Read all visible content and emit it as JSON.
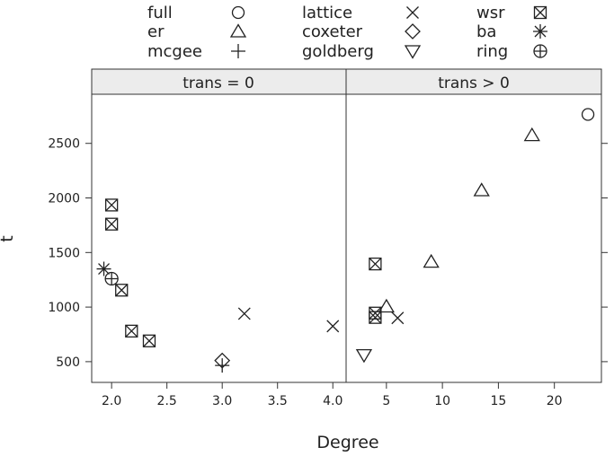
{
  "chart_data": {
    "type": "scatter",
    "ylabel": "t",
    "xlabel": "Degree",
    "legend": {
      "placement": "top",
      "entries": [
        {
          "name": "full",
          "symbol": "circle"
        },
        {
          "name": "lattice",
          "symbol": "x"
        },
        {
          "name": "wsr",
          "symbol": "boxed-x"
        },
        {
          "name": "er",
          "symbol": "triangle-up"
        },
        {
          "name": "coxeter",
          "symbol": "diamond"
        },
        {
          "name": "ba",
          "symbol": "asterisk"
        },
        {
          "name": "mcgee",
          "symbol": "plus"
        },
        {
          "name": "goldberg",
          "symbol": "triangle-down"
        },
        {
          "name": "ring",
          "symbol": "circle-plus"
        }
      ]
    },
    "y_ticks": [
      500,
      1000,
      1500,
      2000,
      2500
    ],
    "ylim": [
      310,
      2950
    ],
    "panels": [
      {
        "strip": "trans = 0",
        "xlim": [
          1.82,
          4.12
        ],
        "x_ticks": [
          2.0,
          2.5,
          3.0,
          3.5,
          4.0
        ],
        "x_tick_labels": [
          "2.0",
          "2.5",
          "3.0",
          "3.5",
          "4.0"
        ],
        "points": [
          {
            "series": "wsr",
            "x": 2.0,
            "y": 1935
          },
          {
            "series": "wsr",
            "x": 2.0,
            "y": 1760
          },
          {
            "series": "ba",
            "x": 1.93,
            "y": 1350
          },
          {
            "series": "ring",
            "x": 2.0,
            "y": 1260
          },
          {
            "series": "wsr",
            "x": 2.09,
            "y": 1155
          },
          {
            "series": "wsr",
            "x": 2.18,
            "y": 780
          },
          {
            "series": "wsr",
            "x": 2.34,
            "y": 690
          },
          {
            "series": "mcgee",
            "x": 3.0,
            "y": 465
          },
          {
            "series": "coxeter",
            "x": 3.0,
            "y": 510
          },
          {
            "series": "lattice",
            "x": 3.2,
            "y": 940
          },
          {
            "series": "lattice",
            "x": 4.0,
            "y": 825
          }
        ]
      },
      {
        "strip": "trans > 0",
        "xlim": [
          1.4,
          24.2
        ],
        "x_ticks": [
          5,
          10,
          15,
          20
        ],
        "x_tick_labels": [
          "5",
          "10",
          "15",
          "20"
        ],
        "points": [
          {
            "series": "full",
            "x": 23,
            "y": 2765
          },
          {
            "series": "er",
            "x": 18,
            "y": 2575
          },
          {
            "series": "er",
            "x": 13.5,
            "y": 2070
          },
          {
            "series": "er",
            "x": 9,
            "y": 1415
          },
          {
            "series": "er",
            "x": 5,
            "y": 1005
          },
          {
            "series": "lattice",
            "x": 6,
            "y": 900
          },
          {
            "series": "wsr",
            "x": 4,
            "y": 1395
          },
          {
            "series": "wsr",
            "x": 4,
            "y": 945
          },
          {
            "series": "wsr",
            "x": 4,
            "y": 905
          },
          {
            "series": "goldberg",
            "x": 3,
            "y": 560
          }
        ]
      }
    ]
  }
}
